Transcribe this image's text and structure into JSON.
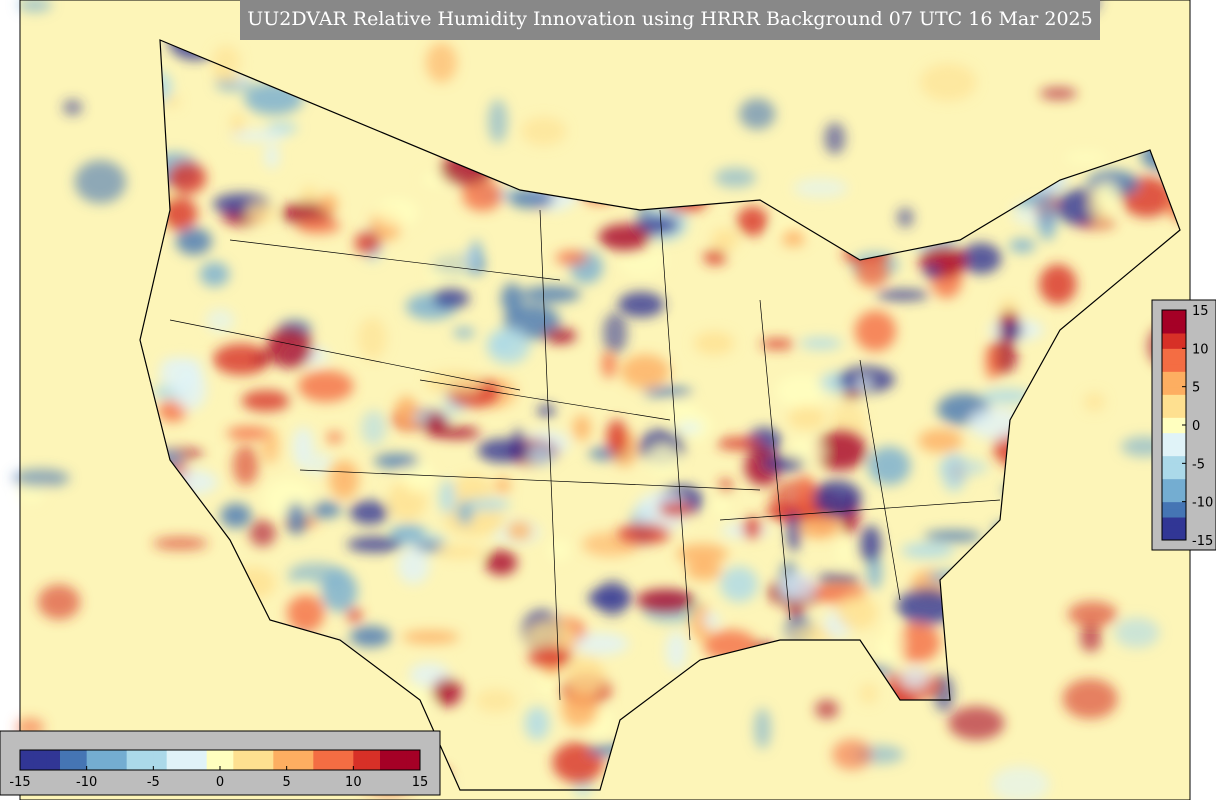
{
  "title": "UU2DVAR Relative Humidity Innovation using HRRR Background 07 UTC 16 Mar 2025",
  "colorbar": {
    "range": [
      -15,
      15
    ],
    "ticks": [
      -15,
      -10,
      -5,
      0,
      5,
      10,
      15
    ],
    "colormap": [
      "#313695",
      "#4575b4",
      "#74add1",
      "#abd9e9",
      "#e0f3f8",
      "#ffffbf",
      "#fee090",
      "#fdae61",
      "#f46d43",
      "#d73027",
      "#a50026"
    ]
  }
}
